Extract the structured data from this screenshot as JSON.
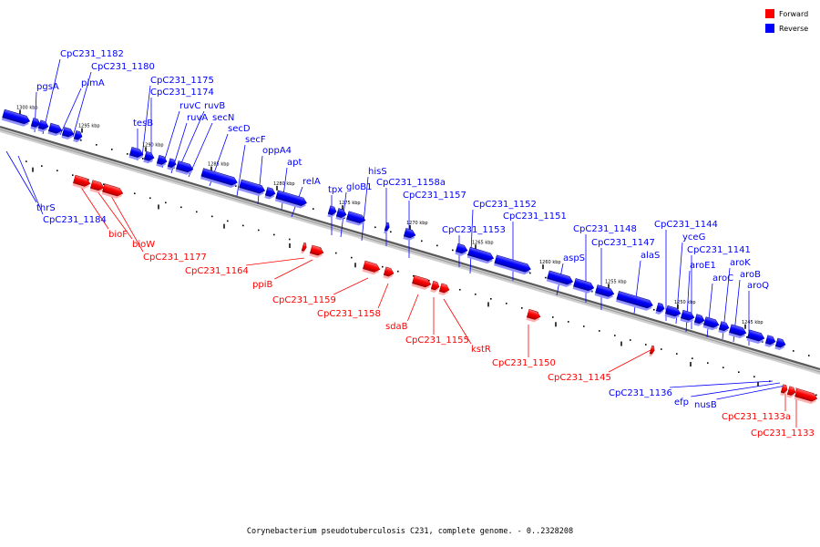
{
  "legend": {
    "forward": {
      "label": "Forward",
      "color": "#ff0000"
    },
    "reverse": {
      "label": "Reverse",
      "color": "#0000ff"
    }
  },
  "caption": "Corynebacterium pseudotuberculosis C231, complete genome. - 0..2328208",
  "ticks": [
    "1300 kbp",
    "1295 kbp",
    "1290 kbp",
    "1285 kbp",
    "1280 kbp",
    "1275 kbp",
    "1270 kbp",
    "1265 kbp",
    "1260 kbp",
    "1255 kbp",
    "1250 kbp",
    "1245 kbp"
  ],
  "genes": [
    {
      "name": "pgsA",
      "strand": "reverse"
    },
    {
      "name": "CpC231_1182",
      "strand": "reverse"
    },
    {
      "name": "pimA",
      "strand": "reverse"
    },
    {
      "name": "CpC231_1180",
      "strand": "reverse"
    },
    {
      "name": "CpC231_1175",
      "strand": "reverse"
    },
    {
      "name": "CpC231_1174",
      "strand": "reverse"
    },
    {
      "name": "tesB",
      "strand": "reverse"
    },
    {
      "name": "ruvC",
      "strand": "reverse"
    },
    {
      "name": "ruvB",
      "strand": "reverse"
    },
    {
      "name": "ruvA",
      "strand": "reverse"
    },
    {
      "name": "secN",
      "strand": "reverse"
    },
    {
      "name": "secD",
      "strand": "reverse"
    },
    {
      "name": "secF",
      "strand": "reverse"
    },
    {
      "name": "oppA4",
      "strand": "reverse"
    },
    {
      "name": "apt",
      "strand": "reverse"
    },
    {
      "name": "relA",
      "strand": "reverse"
    },
    {
      "name": "hisS",
      "strand": "reverse"
    },
    {
      "name": "tpx",
      "strand": "reverse"
    },
    {
      "name": "gloB1",
      "strand": "reverse"
    },
    {
      "name": "CpC231_1158a",
      "strand": "reverse"
    },
    {
      "name": "CpC231_1157",
      "strand": "reverse"
    },
    {
      "name": "CpC231_1152",
      "strand": "reverse"
    },
    {
      "name": "CpC231_1151",
      "strand": "reverse"
    },
    {
      "name": "CpC231_1153",
      "strand": "reverse"
    },
    {
      "name": "CpC231_1148",
      "strand": "reverse"
    },
    {
      "name": "CpC231_1147",
      "strand": "reverse"
    },
    {
      "name": "aspS",
      "strand": "reverse"
    },
    {
      "name": "alaS",
      "strand": "reverse"
    },
    {
      "name": "CpC231_1144",
      "strand": "reverse"
    },
    {
      "name": "yceG",
      "strand": "reverse"
    },
    {
      "name": "CpC231_1141",
      "strand": "reverse"
    },
    {
      "name": "aroE1",
      "strand": "reverse"
    },
    {
      "name": "aroK",
      "strand": "reverse"
    },
    {
      "name": "aroC",
      "strand": "reverse"
    },
    {
      "name": "aroB",
      "strand": "reverse"
    },
    {
      "name": "aroQ",
      "strand": "reverse"
    },
    {
      "name": "thrS",
      "strand": "reverse"
    },
    {
      "name": "CpC231_1184",
      "strand": "reverse"
    },
    {
      "name": "CpC231_1136",
      "strand": "reverse"
    },
    {
      "name": "efp",
      "strand": "reverse"
    },
    {
      "name": "nusB",
      "strand": "reverse"
    },
    {
      "name": "bioF",
      "strand": "forward"
    },
    {
      "name": "bioW",
      "strand": "forward"
    },
    {
      "name": "CpC231_1177",
      "strand": "forward"
    },
    {
      "name": "CpC231_1164",
      "strand": "forward"
    },
    {
      "name": "ppiB",
      "strand": "forward"
    },
    {
      "name": "CpC231_1159",
      "strand": "forward"
    },
    {
      "name": "CpC231_1158",
      "strand": "forward"
    },
    {
      "name": "sdaB",
      "strand": "forward"
    },
    {
      "name": "CpC231_1155",
      "strand": "forward"
    },
    {
      "name": "kstR",
      "strand": "forward"
    },
    {
      "name": "CpC231_1150",
      "strand": "forward"
    },
    {
      "name": "CpC231_1145",
      "strand": "forward"
    },
    {
      "name": "CpC231_1133a",
      "strand": "forward"
    },
    {
      "name": "CpC231_1133",
      "strand": "forward"
    }
  ]
}
